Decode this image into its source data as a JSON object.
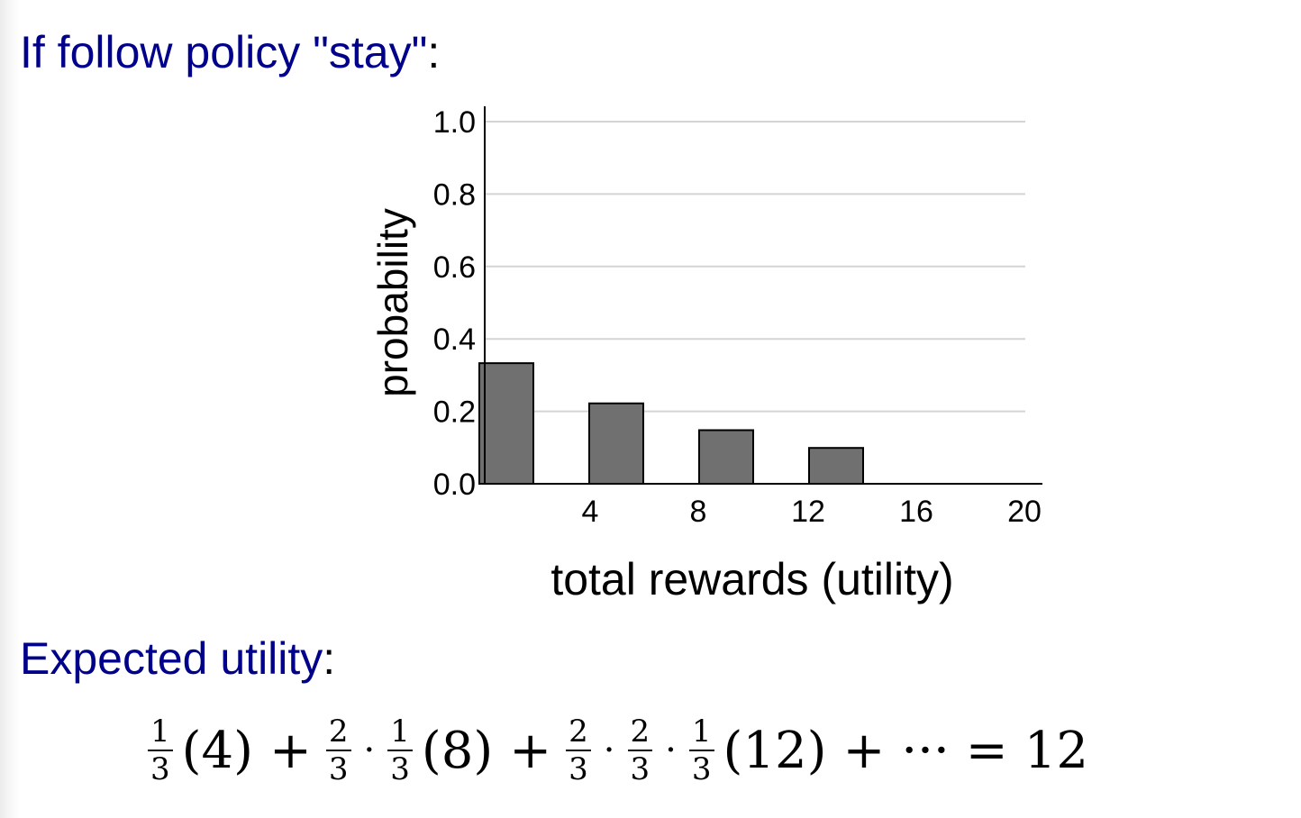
{
  "page": {
    "policy_heading": "If follow policy \"stay\"",
    "eu_heading": "Expected utility",
    "colon": ":"
  },
  "chart_data": {
    "type": "bar",
    "x": [
      4,
      8,
      12,
      16
    ],
    "values": [
      0.333,
      0.222,
      0.148,
      0.099
    ],
    "xticks": [
      "4",
      "8",
      "12",
      "16",
      "20"
    ],
    "yticks": [
      "0.0",
      "0.2",
      "0.4",
      "0.6",
      "0.8",
      "1.0"
    ],
    "xlabel": "total rewards (utility)",
    "ylabel": "probability",
    "ylim": [
      0,
      1.0
    ],
    "xlim": [
      0,
      20
    ],
    "grid": true,
    "bar_color": "#707070"
  },
  "equation": {
    "f1_num": "1",
    "f1_den": "3",
    "t1": "(4)",
    "plus1": "+",
    "f2_num": "2",
    "f2_den": "3",
    "dot1": "·",
    "f3_num": "1",
    "f3_den": "3",
    "t2": "(8)",
    "plus2": "+",
    "f4_num": "2",
    "f4_den": "3",
    "dot2": "·",
    "f5_num": "2",
    "f5_den": "3",
    "dot3": "·",
    "f6_num": "1",
    "f6_den": "3",
    "t3": "(12)",
    "plus3": "+",
    "ellipsis": "···",
    "equals": "=",
    "result": "12"
  }
}
